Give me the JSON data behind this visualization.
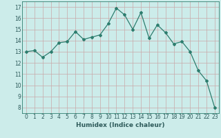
{
  "x": [
    0,
    1,
    2,
    3,
    4,
    5,
    6,
    7,
    8,
    9,
    10,
    11,
    12,
    13,
    14,
    15,
    16,
    17,
    18,
    19,
    20,
    21,
    22,
    23
  ],
  "y": [
    13.0,
    13.1,
    12.5,
    13.0,
    13.8,
    13.9,
    14.8,
    14.1,
    14.3,
    14.5,
    15.5,
    16.9,
    16.3,
    15.0,
    16.5,
    14.2,
    15.4,
    14.7,
    13.7,
    13.9,
    13.0,
    11.3,
    10.4,
    8.0
  ],
  "line_color": "#2d7d6e",
  "marker": "D",
  "marker_size": 2.0,
  "bg_color": "#ccecea",
  "grid_color_major": "#c8a8a8",
  "grid_color_minor": "#c8a8a8",
  "xlabel": "Humidex (Indice chaleur)",
  "xlim": [
    -0.5,
    23.5
  ],
  "ylim": [
    7.5,
    17.5
  ],
  "yticks": [
    8,
    9,
    10,
    11,
    12,
    13,
    14,
    15,
    16,
    17
  ],
  "xticks": [
    0,
    1,
    2,
    3,
    4,
    5,
    6,
    7,
    8,
    9,
    10,
    11,
    12,
    13,
    14,
    15,
    16,
    17,
    18,
    19,
    20,
    21,
    22,
    23
  ],
  "tick_fontsize": 5.5,
  "xlabel_fontsize": 6.5,
  "xlabel_bold": true
}
